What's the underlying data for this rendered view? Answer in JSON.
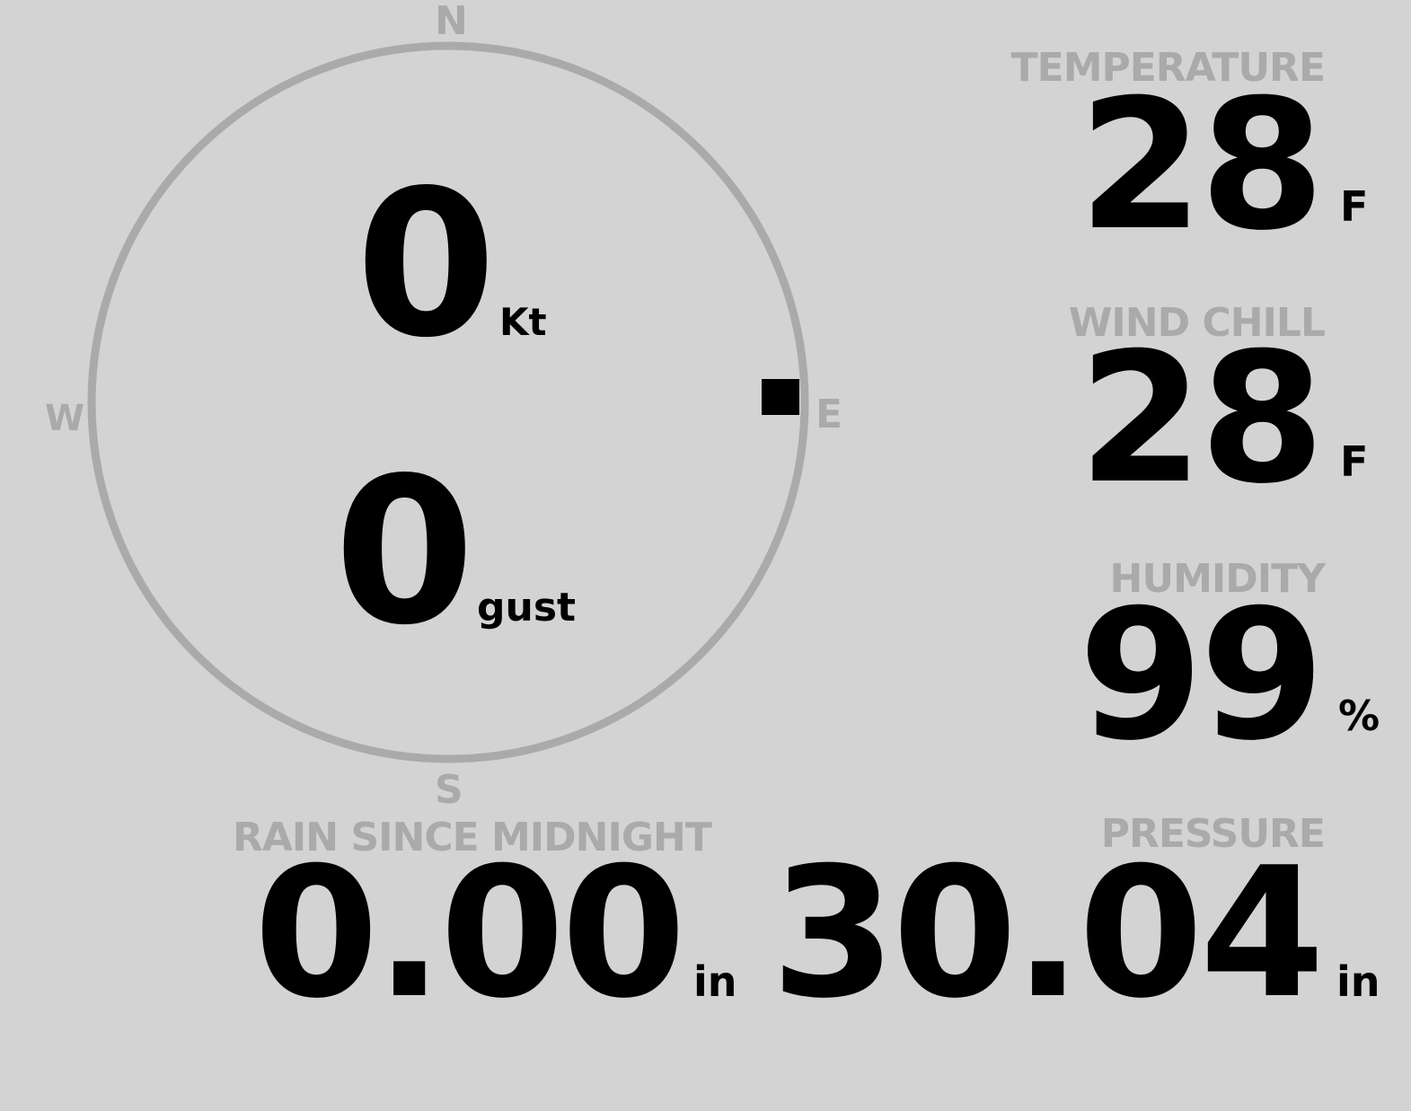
{
  "wind": {
    "speed": "0",
    "speed_unit": "Kt",
    "gust": "0",
    "gust_unit": "gust",
    "direction_degrees": 90,
    "compass": {
      "n": "N",
      "e": "E",
      "s": "S",
      "w": "W"
    }
  },
  "temperature": {
    "label": "TEMPERATURE",
    "value": "28",
    "unit": "F"
  },
  "wind_chill": {
    "label": "WIND CHILL",
    "value": "28",
    "unit": "F"
  },
  "humidity": {
    "label": "HUMIDITY",
    "value": "99",
    "unit": "%"
  },
  "rain": {
    "label": "RAIN SINCE MIDNIGHT",
    "value": "0.00",
    "unit": "in"
  },
  "pressure": {
    "label": "PRESSURE",
    "value": "30.04",
    "unit": "in"
  },
  "colors": {
    "background": "#d3d3d3",
    "muted": "#aaaaaa",
    "value": "#000000"
  }
}
